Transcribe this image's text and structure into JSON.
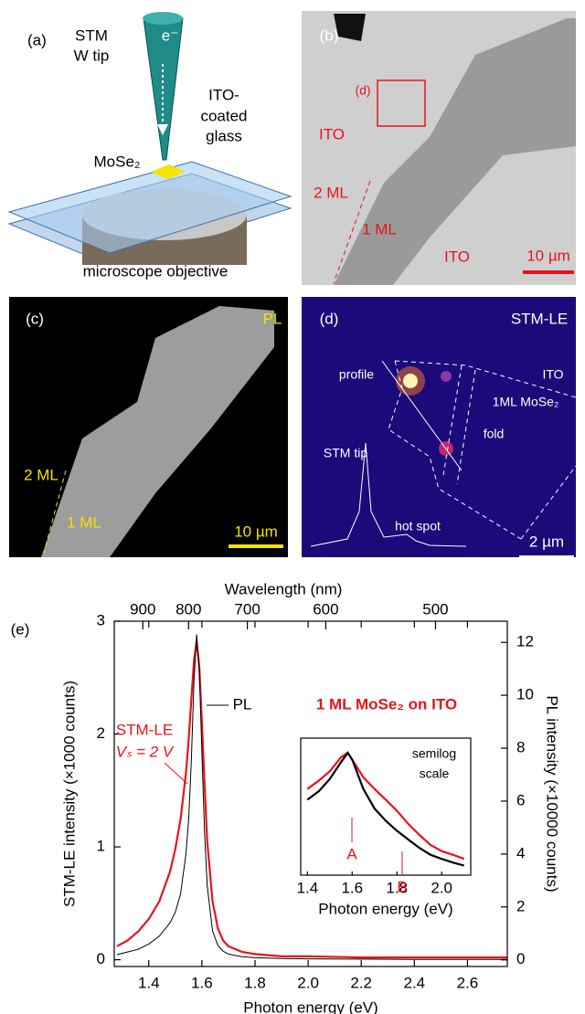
{
  "panels": {
    "a": {
      "label": "(a)",
      "tip_line1": "STM",
      "tip_line2": "W tip",
      "electron": "e⁻",
      "glass_line1": "ITO-",
      "glass_line2": "coated",
      "glass_line3": "glass",
      "sample": "MoSe₂",
      "objective": "microscope objective"
    },
    "b": {
      "label": "(b)",
      "box_label": "(d)",
      "ito_left": "ITO",
      "bilayer": "2 ML",
      "monolayer": "1 ML",
      "ito_right": "ITO",
      "scale": "10 µm"
    },
    "c": {
      "label": "(c)",
      "mode": "PL",
      "bilayer": "2 ML",
      "monolayer": "1 ML",
      "scale": "10 µm"
    },
    "d": {
      "label": "(d)",
      "mode": "STM-LE",
      "profile": "profile",
      "ito": "ITO",
      "layer": "1ML MoSe₂",
      "fold": "fold",
      "tip": "STM tip",
      "hot_spot": "hot spot",
      "scale": "2 µm"
    }
  },
  "chart_data": [
    {
      "type": "line",
      "panel_label": "(e)",
      "xlabel": "Photon energy (eV)",
      "ylabel": "STM-LE intensity (×1000 counts)",
      "y2label": "PL intensity (×10000 counts)",
      "x2label": "Wavelength (nm)",
      "annotations": {
        "bias": "Vₛ = 2 V",
        "sample": "1 ML MoSe₂ on ITO"
      },
      "x": [
        1.28,
        1.32,
        1.36,
        1.4,
        1.44,
        1.48,
        1.5,
        1.52,
        1.54,
        1.55,
        1.56,
        1.57,
        1.58,
        1.59,
        1.6,
        1.61,
        1.62,
        1.64,
        1.66,
        1.68,
        1.7,
        1.75,
        1.8,
        1.9,
        2.0,
        2.2,
        2.4,
        2.6,
        2.75
      ],
      "series": [
        {
          "name": "STM-LE",
          "color": "#e8131a",
          "values": [
            0.12,
            0.17,
            0.25,
            0.36,
            0.52,
            0.78,
            0.98,
            1.25,
            1.65,
            1.95,
            2.3,
            2.65,
            2.82,
            2.6,
            2.1,
            1.55,
            1.05,
            0.52,
            0.28,
            0.17,
            0.12,
            0.07,
            0.05,
            0.03,
            0.03,
            0.02,
            0.02,
            0.02,
            0.02
          ]
        },
        {
          "name": "PL",
          "color": "#000000",
          "axis": "y2",
          "values": [
            0.2,
            0.3,
            0.4,
            0.6,
            0.9,
            1.4,
            1.8,
            2.5,
            4.0,
            5.3,
            7.5,
            10.5,
            12.3,
            11.0,
            7.8,
            4.8,
            2.8,
            1.1,
            0.55,
            0.33,
            0.22,
            0.12,
            0.08,
            0.05,
            0.04,
            0.03,
            0.02,
            0.02,
            0.02
          ]
        }
      ],
      "xlim": [
        1.27,
        2.75
      ],
      "xticks": [
        1.4,
        1.6,
        1.8,
        {
          "value": 2,
          "label": "2.0"
        },
        2.2,
        2.4,
        2.6
      ],
      "x2ticks": [
        900,
        800,
        700,
        600,
        500
      ],
      "ylim": [
        -0.06,
        3
      ],
      "yticks": [
        0,
        1,
        2,
        3
      ],
      "y2lim": [
        -0.25,
        12.8
      ],
      "y2ticks": [
        0,
        2,
        4,
        6,
        8,
        10,
        12
      ]
    },
    {
      "type": "line",
      "log_y": true,
      "xlabel": "Photon energy (eV)",
      "annotations": {
        "line1": "semilog",
        "line2": "scale",
        "peak_a": "A",
        "peak_b": "B"
      },
      "x": [
        1.4,
        1.45,
        1.5,
        1.55,
        1.58,
        1.6,
        1.65,
        1.7,
        1.75,
        1.8,
        1.85,
        1.9,
        1.95,
        2.0,
        2.05,
        2.1
      ],
      "series": [
        {
          "name": "STM-LE",
          "color": "#e8131a",
          "values": [
            0.3,
            0.38,
            0.5,
            0.75,
            0.85,
            0.7,
            0.42,
            0.3,
            0.22,
            0.16,
            0.11,
            0.08,
            0.06,
            0.05,
            0.045,
            0.04
          ]
        },
        {
          "name": "PL",
          "color": "#000000",
          "values": [
            0.22,
            0.28,
            0.4,
            0.65,
            0.85,
            0.7,
            0.3,
            0.17,
            0.12,
            0.09,
            0.07,
            0.055,
            0.045,
            0.04,
            0.036,
            0.033
          ]
        }
      ],
      "xlim": [
        1.37,
        2.13
      ],
      "xticks": [
        1.4,
        1.6,
        1.8,
        {
          "value": 2,
          "label": "2.0"
        }
      ],
      "ylim": [
        0.025,
        1.3
      ]
    }
  ]
}
